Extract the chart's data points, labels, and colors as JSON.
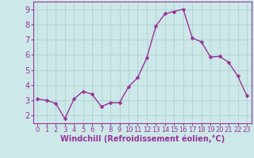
{
  "x": [
    0,
    1,
    2,
    3,
    4,
    5,
    6,
    7,
    8,
    9,
    10,
    11,
    12,
    13,
    14,
    15,
    16,
    17,
    18,
    19,
    20,
    21,
    22,
    23
  ],
  "y": [
    3.1,
    3.0,
    2.8,
    1.8,
    3.1,
    3.6,
    3.4,
    2.6,
    2.85,
    2.85,
    3.9,
    4.5,
    5.8,
    7.9,
    8.7,
    8.85,
    9.0,
    7.1,
    6.85,
    5.85,
    5.9,
    5.5,
    4.6,
    3.3
  ],
  "line_color": "#993399",
  "marker": "D",
  "marker_size": 2.5,
  "linewidth": 1.0,
  "bg_color": "#cce8e8",
  "grid_color": "#aacccc",
  "xlabel": "Windchill (Refroidissement éolien,°C)",
  "ylabel": "",
  "title": "",
  "xlim": [
    -0.5,
    23.5
  ],
  "ylim": [
    1.5,
    9.5
  ],
  "yticks": [
    2,
    3,
    4,
    5,
    6,
    7,
    8,
    9
  ],
  "xticks": [
    0,
    1,
    2,
    3,
    4,
    5,
    6,
    7,
    8,
    9,
    10,
    11,
    12,
    13,
    14,
    15,
    16,
    17,
    18,
    19,
    20,
    21,
    22,
    23
  ],
  "tick_color": "#993399",
  "label_color": "#993399",
  "spine_color": "#993399",
  "xlabel_fontsize": 7.0,
  "ytick_fontsize": 7.0,
  "xtick_fontsize": 6.0
}
